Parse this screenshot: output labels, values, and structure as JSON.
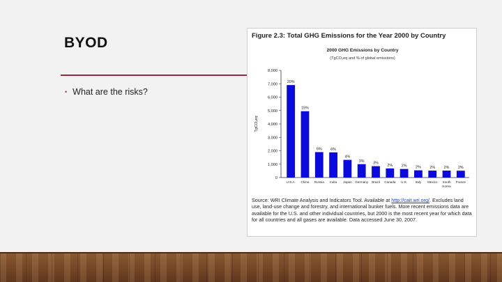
{
  "slide": {
    "title": "BYOD",
    "bullets": [
      "What are the risks?"
    ]
  },
  "figure": {
    "caption": "Figure 2.3: Total GHG Emissions for the Year 2000 by Country",
    "source_prefix": "Source: WRI Climate Analysis and Indicators Tool.  Available at ",
    "source_link": "http://cait.wri.org/",
    "source_suffix": ". Excludes land use, land-use change and forestry, and international bunker fuels. More recent emissions data are available for the U.S. and other individual countries, but 2000 is the most recent year for which data for all countries and all gases are available.  Data accessed June 30, 2007."
  },
  "chart_data": {
    "type": "bar",
    "title": "2000 GHG Emissions by Country",
    "subtitle": "(TgCO₂eq and % of global emissions)",
    "xlabel": "",
    "ylabel": "TgCO₂eq",
    "ylim": [
      0,
      8000
    ],
    "yticks": [
      0,
      1000,
      2000,
      3000,
      4000,
      5000,
      6000,
      7000,
      8000
    ],
    "ytick_labels": [
      "0",
      "1,000",
      "2,000",
      "3,000",
      "4,000",
      "5,000",
      "6,000",
      "7,000",
      "8,000"
    ],
    "categories": [
      "U.S.A.",
      "China",
      "Russia",
      "India",
      "Japan",
      "Germany",
      "Brazil",
      "Canada",
      "U.K.",
      "Italy",
      "Mexico",
      "South Korea",
      "France"
    ],
    "values": [
      6900,
      4950,
      1900,
      1880,
      1320,
      1000,
      850,
      680,
      640,
      540,
      520,
      520,
      510
    ],
    "data_labels": [
      "20%",
      "15%",
      "6%",
      "6%",
      "4%",
      "3%",
      "3%",
      "2%",
      "2%",
      "2%",
      "2%",
      "2%",
      "2%"
    ],
    "bar_color": "#0a0ae0",
    "grid": false
  }
}
